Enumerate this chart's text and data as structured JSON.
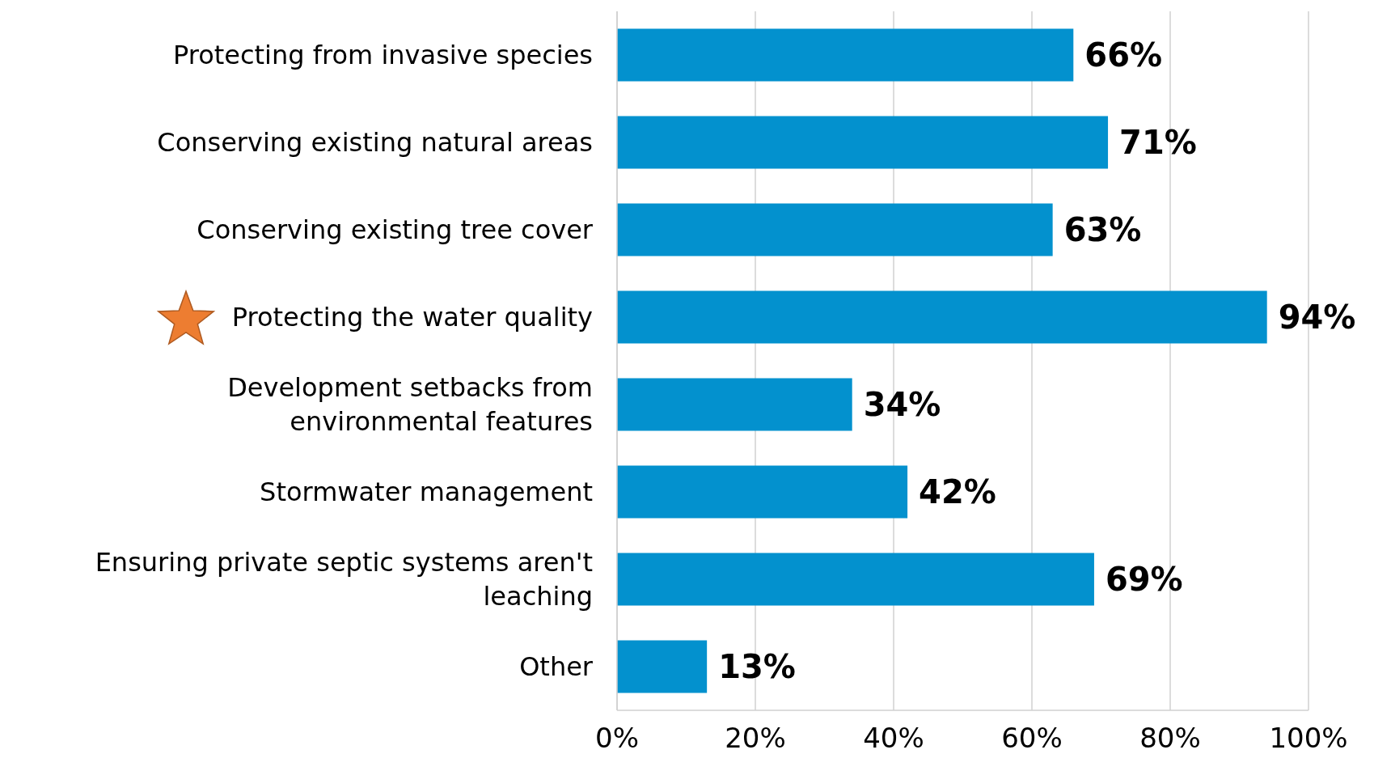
{
  "chart_data": {
    "type": "bar",
    "orientation": "horizontal",
    "categories": [
      "Protecting from invasive species",
      "Conserving existing natural areas",
      "Conserving existing tree cover",
      "Protecting the water quality",
      "Development setbacks from environmental features",
      "Stormwater management",
      "Ensuring private septic systems aren't leaching",
      "Other"
    ],
    "values": [
      66,
      71,
      63,
      94,
      34,
      42,
      69,
      13
    ],
    "value_labels": [
      "66%",
      "71%",
      "63%",
      "94%",
      "34%",
      "42%",
      "69%",
      "13%"
    ],
    "color": "#0391ce",
    "xlim": [
      0,
      100
    ],
    "xticks": [
      {
        "value": 0,
        "label": "0%"
      },
      {
        "value": 20,
        "label": "20%"
      },
      {
        "value": 40,
        "label": "40%"
      },
      {
        "value": 60,
        "label": "60%"
      },
      {
        "value": 80,
        "label": "80%"
      },
      {
        "value": 100,
        "label": "100%"
      }
    ],
    "grid": "x"
  }
}
